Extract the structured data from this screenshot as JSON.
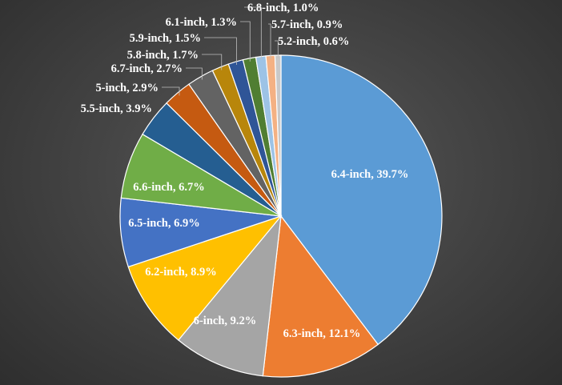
{
  "chart_data": {
    "type": "pie",
    "title": "",
    "label_separator": ", ",
    "start_angle_deg": 0,
    "direction": "clockwise",
    "legend": "none",
    "slices": [
      {
        "label": "6.4-inch",
        "value": 39.7,
        "display": "39.7%",
        "color": "#5b9bd5"
      },
      {
        "label": "6.3-inch",
        "value": 12.1,
        "display": "12.1%",
        "color": "#ed7d31"
      },
      {
        "label": "6-inch",
        "value": 9.2,
        "display": "9.2%",
        "color": "#a5a5a5"
      },
      {
        "label": "6.2-inch",
        "value": 8.9,
        "display": "8.9%",
        "color": "#ffc000"
      },
      {
        "label": "6.5-inch",
        "value": 6.9,
        "display": "6.9%",
        "color": "#4472c4"
      },
      {
        "label": "6.6-inch",
        "value": 6.7,
        "display": "6.7%",
        "color": "#70ad47"
      },
      {
        "label": "5.5-inch",
        "value": 3.9,
        "display": "3.9%",
        "color": "#255e91"
      },
      {
        "label": "5-inch",
        "value": 2.9,
        "display": "2.9%",
        "color": "#c55a11"
      },
      {
        "label": "6.7-inch",
        "value": 2.7,
        "display": "2.7%",
        "color": "#636363"
      },
      {
        "label": "5.8-inch",
        "value": 1.7,
        "display": "1.7%",
        "color": "#b8860b"
      },
      {
        "label": "5.9-inch",
        "value": 1.5,
        "display": "1.5%",
        "color": "#2f5597"
      },
      {
        "label": "6.1-inch",
        "value": 1.3,
        "display": "1.3%",
        "color": "#507e32"
      },
      {
        "label": "6.8-inch",
        "value": 1.0,
        "display": "1.0%",
        "color": "#9dc3e6"
      },
      {
        "label": "5.7-inch",
        "value": 0.9,
        "display": "0.9%",
        "color": "#f4b183"
      },
      {
        "label": "5.2-inch",
        "value": 0.6,
        "display": "0.6%",
        "color": "#c9c9c9"
      }
    ]
  }
}
